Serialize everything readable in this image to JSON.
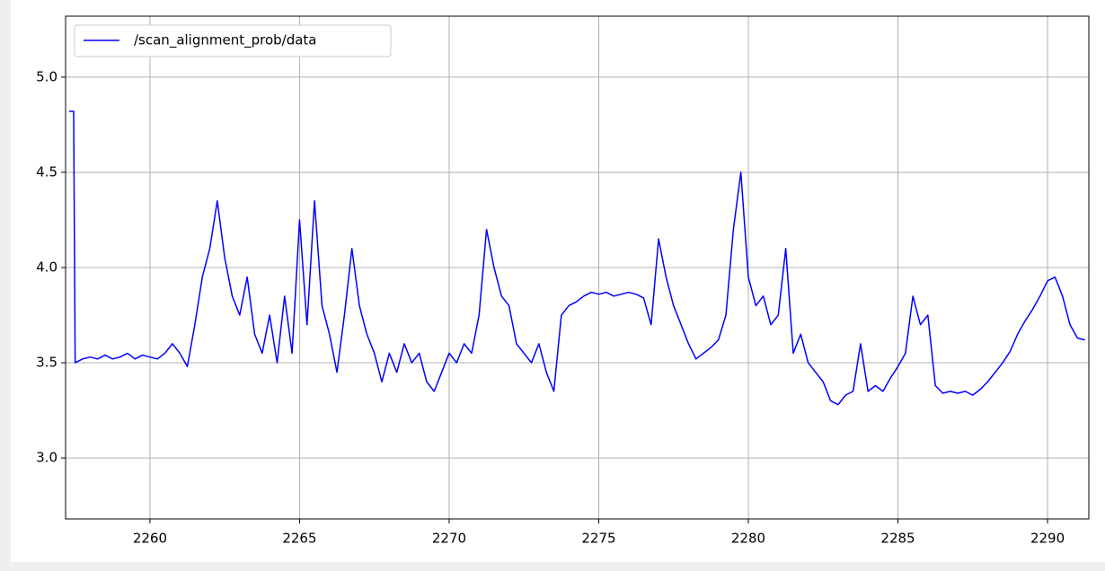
{
  "chart_data": {
    "type": "line",
    "x": [
      2257.3,
      2257.45,
      2257.5,
      2257.75,
      2258,
      2258.25,
      2258.5,
      2258.75,
      2259,
      2259.25,
      2259.5,
      2259.75,
      2260,
      2260.25,
      2260.5,
      2260.75,
      2261,
      2261.25,
      2261.5,
      2261.75,
      2262,
      2262.25,
      2262.5,
      2262.75,
      2263,
      2263.25,
      2263.5,
      2263.75,
      2264,
      2264.25,
      2264.5,
      2264.75,
      2265,
      2265.25,
      2265.5,
      2265.75,
      2266,
      2266.25,
      2266.5,
      2266.75,
      2267,
      2267.25,
      2267.5,
      2267.75,
      2268,
      2268.25,
      2268.5,
      2268.75,
      2269,
      2269.25,
      2269.5,
      2269.75,
      2270,
      2270.25,
      2270.5,
      2270.75,
      2271,
      2271.25,
      2271.5,
      2271.75,
      2272,
      2272.25,
      2272.5,
      2272.75,
      2273,
      2273.25,
      2273.5,
      2273.75,
      2274,
      2274.25,
      2274.5,
      2274.75,
      2275,
      2275.25,
      2275.5,
      2275.75,
      2276,
      2276.25,
      2276.5,
      2276.75,
      2277,
      2277.25,
      2277.5,
      2277.75,
      2278,
      2278.25,
      2278.5,
      2278.75,
      2279,
      2279.25,
      2279.5,
      2279.75,
      2280,
      2280.25,
      2280.5,
      2280.75,
      2281,
      2281.25,
      2281.5,
      2281.75,
      2282,
      2282.25,
      2282.5,
      2282.75,
      2283,
      2283.25,
      2283.5,
      2283.75,
      2284,
      2284.25,
      2284.5,
      2284.75,
      2285,
      2285.25,
      2285.5,
      2285.75,
      2286,
      2286.25,
      2286.5,
      2286.75,
      2287,
      2287.25,
      2287.5,
      2287.75,
      2288,
      2288.25,
      2288.5,
      2288.75,
      2289,
      2289.25,
      2289.5,
      2289.75,
      2290,
      2290.25,
      2290.5,
      2290.75,
      2291,
      2291.25
    ],
    "series": [
      {
        "name": "/scan_alignment_prob/data",
        "color": "#0000ff",
        "values": [
          4.82,
          4.82,
          3.5,
          3.52,
          3.53,
          3.52,
          3.54,
          3.52,
          3.53,
          3.55,
          3.52,
          3.54,
          3.53,
          3.52,
          3.55,
          3.6,
          3.55,
          3.48,
          3.7,
          3.95,
          4.1,
          4.35,
          4.05,
          3.85,
          3.75,
          3.95,
          3.65,
          3.55,
          3.75,
          3.5,
          3.85,
          3.55,
          4.25,
          3.7,
          4.35,
          3.8,
          3.65,
          3.45,
          3.75,
          4.1,
          3.8,
          3.65,
          3.55,
          3.4,
          3.55,
          3.45,
          3.6,
          3.5,
          3.55,
          3.4,
          3.35,
          3.45,
          3.55,
          3.5,
          3.6,
          3.55,
          3.75,
          4.2,
          4.0,
          3.85,
          3.8,
          3.6,
          3.55,
          3.5,
          3.6,
          3.45,
          3.35,
          3.75,
          3.8,
          3.82,
          3.85,
          3.87,
          3.86,
          3.87,
          3.85,
          3.86,
          3.87,
          3.86,
          3.84,
          3.7,
          4.15,
          3.95,
          3.8,
          3.7,
          3.6,
          3.52,
          3.55,
          3.58,
          3.62,
          3.75,
          4.2,
          4.5,
          3.95,
          3.8,
          3.85,
          3.7,
          3.75,
          4.1,
          3.55,
          3.65,
          3.5,
          3.45,
          3.4,
          3.3,
          3.28,
          3.33,
          3.35,
          3.6,
          3.35,
          3.38,
          3.35,
          3.42,
          3.48,
          3.55,
          3.85,
          3.7,
          3.75,
          3.38,
          3.34,
          3.35,
          3.34,
          3.35,
          3.33,
          3.36,
          3.4,
          3.45,
          3.5,
          3.56,
          3.65,
          3.72,
          3.78,
          3.85,
          3.93,
          3.95,
          3.85,
          3.7,
          3.63,
          3.62
        ]
      }
    ],
    "xlim": [
      2257.18,
      2291.38
    ],
    "ylim": [
      2.68,
      5.32
    ],
    "xticks": [
      2260,
      2265,
      2270,
      2275,
      2280,
      2285,
      2290
    ],
    "yticks": [
      {
        "value": 3,
        "label": "3.0"
      },
      {
        "value": 3.5,
        "label": "3.5"
      },
      {
        "value": 4,
        "label": "4.0"
      },
      {
        "value": 4.5,
        "label": "4.5"
      },
      {
        "value": 5,
        "label": "5.0"
      }
    ],
    "grid": true,
    "legend": "upper-left"
  }
}
